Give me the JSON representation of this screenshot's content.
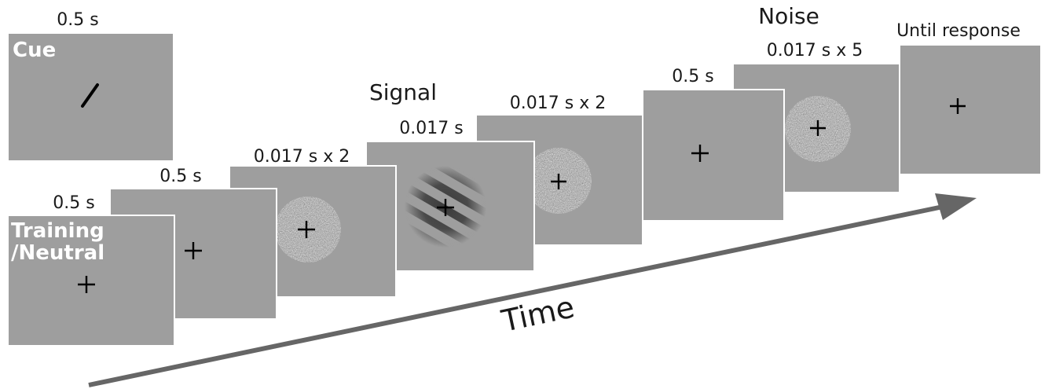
{
  "header": {
    "title": "",
    "subtitle": ""
  },
  "cue_panel": {
    "duration": "0.5 s",
    "label": "Cue"
  },
  "sequence": [
    {
      "duration": "0.5 s",
      "label_lines": [
        "Training",
        "/Neutral"
      ],
      "stimulus": "fixation"
    },
    {
      "duration": "0.5 s",
      "stimulus": "fixation"
    },
    {
      "duration": "0.017 s x 2",
      "stimulus": "noise-disc"
    },
    {
      "duration": "0.017 s",
      "title": "Signal",
      "stimulus": "grating"
    },
    {
      "duration": "0.017 s x 2",
      "stimulus": "noise-disc"
    },
    {
      "duration": "0.5 s",
      "stimulus": "fixation"
    },
    {
      "duration": "0.017 s x 5",
      "title": "Noise",
      "stimulus": "noise-disc"
    },
    {
      "duration": "Until response",
      "stimulus": "fixation"
    }
  ],
  "axis": {
    "label": "Time"
  },
  "colors": {
    "panel": "#9e9e9e",
    "border": "#ffffff",
    "arrow": "#666666",
    "ink": "#000000"
  }
}
